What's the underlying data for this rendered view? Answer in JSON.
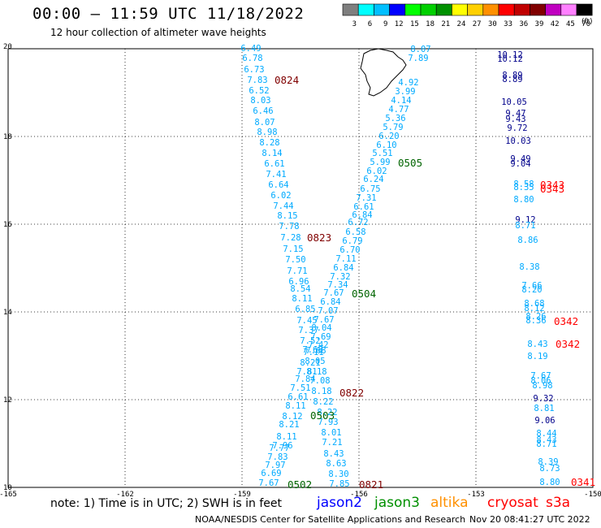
{
  "header": {
    "title": "00:00 – 11:59 UTC 11/18/2022",
    "subtitle": "12 hour collection of altimeter wave heights"
  },
  "legend": {
    "unit_label": "(ft)",
    "bins": [
      {
        "label": "3",
        "color": "#7f7f7f"
      },
      {
        "label": "6",
        "color": "#00ffff"
      },
      {
        "label": "9",
        "color": "#00bfff"
      },
      {
        "label": "12",
        "color": "#0000ff"
      },
      {
        "label": "15",
        "color": "#00ff00"
      },
      {
        "label": "18",
        "color": "#00d000"
      },
      {
        "label": "21",
        "color": "#009000"
      },
      {
        "label": "24",
        "color": "#ffff00"
      },
      {
        "label": "27",
        "color": "#ffd000"
      },
      {
        "label": "30",
        "color": "#ff9000"
      },
      {
        "label": "33",
        "color": "#ff0000"
      },
      {
        "label": "36",
        "color": "#c00000"
      },
      {
        "label": "39",
        "color": "#800000"
      },
      {
        "label": "42",
        "color": "#c000c0"
      },
      {
        "label": "45",
        "color": "#ff80ff"
      },
      {
        "label": "70",
        "color": "#000000"
      }
    ]
  },
  "map": {
    "x_ticks": [
      "-165",
      "-162",
      "-159",
      "-156",
      "-153",
      "-150"
    ],
    "y_ticks": [
      "20",
      "18",
      "16",
      "14",
      "12",
      "10"
    ],
    "lon_range": [
      -165,
      -150
    ],
    "lat_range": [
      10,
      20
    ]
  },
  "tracks": {
    "jason3_sw_color": "#00aaff",
    "jason3_color": "#006400",
    "pass_label_color": "#800000",
    "jason2_color": "#00008b",
    "s3a_color": "#ff0000",
    "track_A": {
      "values": [
        "6.49",
        "6.78",
        "6.73",
        "7.83",
        "6.52",
        "8.03",
        "6.46",
        "8.07",
        "8.98",
        "8.28",
        "8.14",
        "6.61",
        "7.41",
        "6.64",
        "6.02",
        "7.44",
        "8.15",
        "7.78",
        "7.28",
        "7.15",
        "7.50",
        "7.71",
        "6.96",
        "8.54",
        "8.11",
        "6.85",
        "7.45",
        "7.37",
        "7.52",
        "7.68",
        "7.11",
        "8.21",
        "7.81",
        "7.84",
        "7.51",
        "6.61",
        "8.11",
        "8.12",
        "8.21",
        "8.11",
        "7.96",
        "7.77",
        "7.83",
        "7.97",
        "6.69",
        "7.67"
      ],
      "labels": [
        {
          "text": "0824",
          "color": "pass"
        },
        {
          "text": "0823",
          "color": "pass"
        }
      ]
    },
    "track_B": {
      "values": [
        "8.07",
        "7.89",
        "4.92",
        "3.99",
        "4.14",
        "4.77",
        "5.36",
        "5.79",
        "6.20",
        "6.10",
        "5.51",
        "5.99",
        "6.02",
        "6.24",
        "6.75",
        "7.31",
        "6.61",
        "6.84",
        "6.72",
        "6.58",
        "6.79",
        "6.70",
        "7.11",
        "6.84",
        "7.32",
        "7.34",
        "7.67",
        "6.84",
        "7.07",
        "7.67",
        "8.04",
        "7.69",
        "7.42",
        "7.68",
        "8.05",
        "8.18",
        "7.08",
        "8.18",
        "8.22",
        "8.22",
        "7.93",
        "8.01",
        "7.21",
        "8.43",
        "8.63",
        "8.30",
        "7.85"
      ],
      "labels": [
        {
          "text": "0505"
        },
        {
          "text": "0504"
        },
        {
          "text": "0503"
        },
        {
          "text": "0502"
        },
        {
          "text": "0822"
        },
        {
          "text": "0821"
        }
      ]
    },
    "jason2_east": {
      "values": [
        "10.12",
        "8.89",
        "10.05",
        "9.47",
        "9.43",
        "9.72",
        "10.03",
        "9.49",
        "9.04",
        "9.12",
        "9.32",
        "9.06"
      ]
    },
    "s3a_east": {
      "labels": [
        "0343",
        "0342",
        "0342",
        "0341"
      ]
    },
    "east_sw": {
      "values": [
        "8.58",
        "8.80",
        "8.35",
        "8.71",
        "8.86",
        "8.38",
        "7.66",
        "8.20",
        "8.68",
        "8.12",
        "8.26",
        "8.36",
        "8.43",
        "8.19",
        "7.67",
        "8.06",
        "8.98",
        "8.81",
        "8.44",
        "8.43",
        "8.71",
        "8.39",
        "8.73",
        "8.80"
      ]
    }
  },
  "footer": {
    "note": "note:  1) Time is in UTC;  2) SWH is in feet",
    "satellites": [
      {
        "name": "jason2",
        "color": "#0000ff"
      },
      {
        "name": "jason3",
        "color": "#009000"
      },
      {
        "name": "altika",
        "color": "#ff9000"
      },
      {
        "name": "cryosat",
        "color": "#ff0000"
      },
      {
        "name": "s3a",
        "color": "#ff0000"
      }
    ],
    "credit": "NOAA/NESDIS Center for Satellite Applications and Research",
    "timestamp": "Nov 20 08:41:27 UTC 2022"
  }
}
